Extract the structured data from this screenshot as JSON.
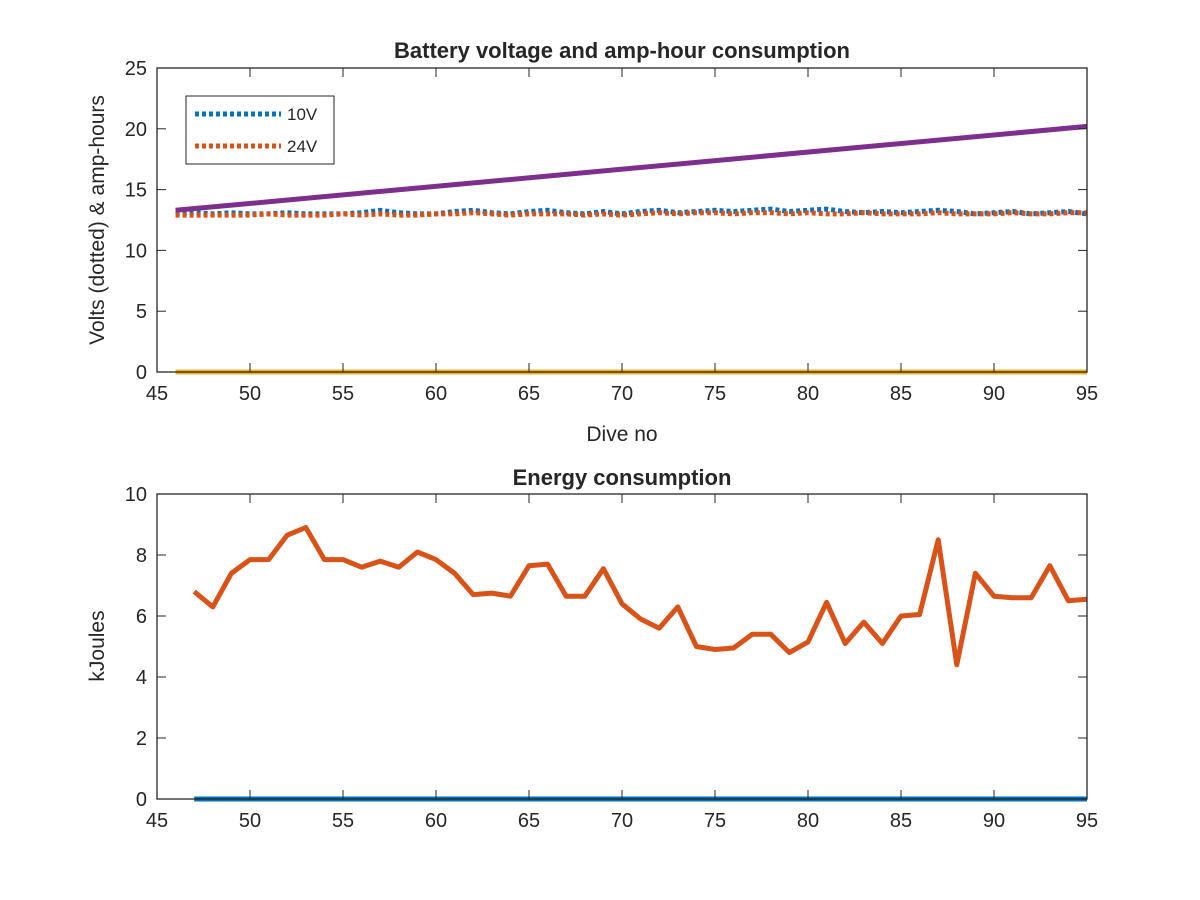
{
  "chart_data": [
    {
      "type": "line",
      "title": "Battery voltage and amp-hour consumption",
      "xlabel": "Dive no",
      "ylabel": "Volts (dotted) & amp-hours",
      "xlim": [
        45,
        95
      ],
      "ylim": [
        0,
        25
      ],
      "xticks": [
        45,
        50,
        55,
        60,
        65,
        70,
        75,
        80,
        85,
        90,
        95
      ],
      "yticks": [
        0,
        5,
        10,
        15,
        20,
        25
      ],
      "grid": false,
      "legend": {
        "placement": "top-left",
        "entries": [
          "10V",
          "24V"
        ]
      },
      "series": [
        {
          "name": "10V",
          "style": "dotted",
          "color": "#0072BD",
          "x": [
            46,
            47,
            48,
            49,
            50,
            51,
            52,
            53,
            54,
            55,
            56,
            57,
            58,
            59,
            60,
            61,
            62,
            63,
            64,
            65,
            66,
            67,
            68,
            69,
            70,
            71,
            72,
            73,
            74,
            75,
            76,
            77,
            78,
            79,
            80,
            81,
            82,
            83,
            84,
            85,
            86,
            87,
            88,
            89,
            90,
            91,
            92,
            93,
            94,
            95
          ],
          "y": [
            13.0,
            13.1,
            13.0,
            13.1,
            13.0,
            13.0,
            13.1,
            13.0,
            13.0,
            13.0,
            13.1,
            13.3,
            13.1,
            13.0,
            13.0,
            13.2,
            13.3,
            13.1,
            13.0,
            13.2,
            13.3,
            13.1,
            13.0,
            13.2,
            13.0,
            13.2,
            13.3,
            13.1,
            13.2,
            13.3,
            13.2,
            13.3,
            13.4,
            13.2,
            13.3,
            13.4,
            13.2,
            13.1,
            13.2,
            13.1,
            13.2,
            13.3,
            13.2,
            13.0,
            13.1,
            13.2,
            13.0,
            13.1,
            13.2,
            13.0
          ]
        },
        {
          "name": "24V",
          "style": "dotted",
          "color": "#D95319",
          "x": [
            46,
            47,
            48,
            49,
            50,
            51,
            52,
            53,
            54,
            55,
            56,
            57,
            58,
            59,
            60,
            61,
            62,
            63,
            64,
            65,
            66,
            67,
            68,
            69,
            70,
            71,
            72,
            73,
            74,
            75,
            76,
            77,
            78,
            79,
            80,
            81,
            82,
            83,
            84,
            85,
            86,
            87,
            88,
            89,
            90,
            91,
            92,
            93,
            94,
            95
          ],
          "y": [
            12.9,
            12.9,
            12.9,
            12.9,
            12.9,
            13.0,
            12.9,
            12.9,
            12.9,
            13.0,
            12.9,
            13.0,
            12.9,
            12.9,
            13.0,
            13.0,
            13.1,
            13.0,
            12.9,
            13.0,
            13.0,
            13.0,
            12.9,
            13.0,
            12.9,
            13.0,
            13.1,
            13.0,
            13.1,
            13.1,
            13.0,
            13.1,
            13.1,
            13.0,
            13.1,
            13.0,
            13.0,
            13.1,
            13.0,
            13.0,
            13.0,
            13.1,
            13.0,
            13.0,
            13.0,
            13.1,
            13.0,
            13.0,
            13.1,
            13.1
          ]
        },
        {
          "style": "solid",
          "color": "#EDB120",
          "x": [
            46,
            95
          ],
          "y": [
            0,
            0
          ]
        },
        {
          "style": "solid",
          "color": "#7E2F8E",
          "x": [
            46,
            95
          ],
          "y": [
            13.3,
            20.2
          ]
        }
      ]
    },
    {
      "type": "line",
      "title": "Energy consumption",
      "xlabel": "",
      "ylabel": "kJoules",
      "xlim": [
        45,
        95
      ],
      "ylim": [
        0,
        10
      ],
      "xticks": [
        45,
        50,
        55,
        60,
        65,
        70,
        75,
        80,
        85,
        90,
        95
      ],
      "yticks": [
        0,
        2,
        4,
        6,
        8,
        10
      ],
      "grid": false,
      "series": [
        {
          "style": "solid",
          "color": "#0072BD",
          "x": [
            47,
            95
          ],
          "y": [
            0,
            0
          ]
        },
        {
          "style": "solid",
          "color": "#D95319",
          "x": [
            47,
            48,
            49,
            50,
            51,
            52,
            53,
            54,
            55,
            56,
            57,
            58,
            59,
            60,
            61,
            62,
            63,
            64,
            65,
            66,
            67,
            68,
            69,
            70,
            71,
            72,
            73,
            74,
            75,
            76,
            77,
            78,
            79,
            80,
            81,
            82,
            83,
            84,
            85,
            86,
            87,
            88,
            89,
            90,
            91,
            92,
            93,
            94,
            95
          ],
          "y": [
            6.8,
            6.3,
            7.4,
            7.85,
            7.85,
            8.65,
            8.9,
            7.85,
            7.85,
            7.6,
            7.8,
            7.6,
            8.1,
            7.85,
            7.4,
            6.7,
            6.75,
            6.65,
            7.65,
            7.7,
            6.65,
            6.65,
            7.55,
            6.4,
            5.9,
            5.6,
            6.3,
            5.0,
            4.9,
            4.95,
            5.4,
            5.4,
            4.8,
            5.15,
            6.45,
            5.1,
            5.8,
            5.1,
            6.0,
            6.05,
            8.5,
            4.4,
            7.4,
            6.65,
            6.6,
            6.6,
            7.65,
            6.5,
            6.55
          ]
        }
      ]
    }
  ]
}
